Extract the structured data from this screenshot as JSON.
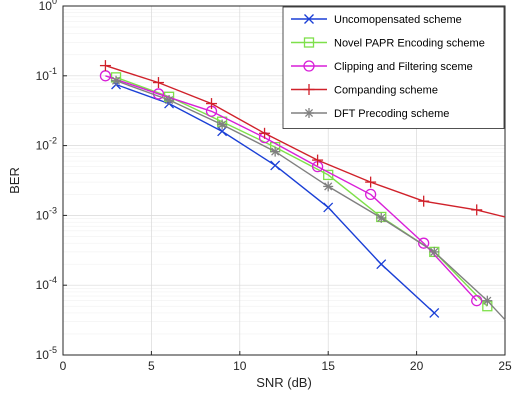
{
  "chart_data": {
    "type": "line",
    "xlabel": "SNR (dB)",
    "ylabel": "BER",
    "xlim": [
      0,
      25
    ],
    "ylim": [
      1e-05,
      1
    ],
    "yscale": "log",
    "grid": true,
    "legend_position": "top-right",
    "x_ticks": [
      "0",
      "5",
      "10",
      "15",
      "20",
      "25"
    ],
    "y_ticks": [
      {
        "base": "10",
        "exp": "0"
      },
      {
        "base": "10",
        "exp": "-1"
      },
      {
        "base": "10",
        "exp": "-2"
      },
      {
        "base": "10",
        "exp": "-3"
      },
      {
        "base": "10",
        "exp": "-4"
      },
      {
        "base": "10",
        "exp": "-5"
      }
    ],
    "series": [
      {
        "name": "Uncomopensated scheme",
        "color": "#1a3fd6",
        "marker": "x",
        "x": [
          3,
          6,
          9,
          12,
          15,
          18,
          21
        ],
        "y": [
          0.075,
          0.04,
          0.016,
          0.0052,
          0.0013,
          0.0002,
          4e-05
        ]
      },
      {
        "name": "Novel PAPR Encoding scheme",
        "color": "#7ee04a",
        "marker": "square",
        "x": [
          3,
          6,
          9,
          12,
          15,
          18,
          21,
          24
        ],
        "y": [
          0.095,
          0.05,
          0.022,
          0.0095,
          0.0038,
          0.00095,
          0.0003,
          5e-05
        ]
      },
      {
        "name": "Clipping and Filtering sceme",
        "color": "#d81fd8",
        "marker": "circle",
        "x": [
          2.4,
          5.4,
          8.4,
          11.4,
          14.4,
          17.4,
          20.4,
          23.4
        ],
        "y": [
          0.1,
          0.055,
          0.031,
          0.013,
          0.005,
          0.002,
          0.0004,
          6e-05
        ]
      },
      {
        "name": "Companding scheme",
        "color": "#d0212a",
        "marker": "plus",
        "x": [
          2.4,
          5.4,
          8.4,
          11.4,
          14.4,
          17.4,
          20.4,
          23.4,
          25
        ],
        "y": [
          0.14,
          0.08,
          0.04,
          0.015,
          0.0062,
          0.003,
          0.0016,
          0.0012,
          0.00095
        ]
      },
      {
        "name": "DFT Precoding scheme",
        "color": "#808080",
        "marker": "asterisk",
        "x": [
          3,
          6,
          9,
          12,
          15,
          18,
          21,
          24,
          25
        ],
        "y": [
          0.085,
          0.045,
          0.02,
          0.0082,
          0.0026,
          0.00092,
          0.0003,
          6e-05,
          3.2e-05
        ]
      }
    ]
  }
}
